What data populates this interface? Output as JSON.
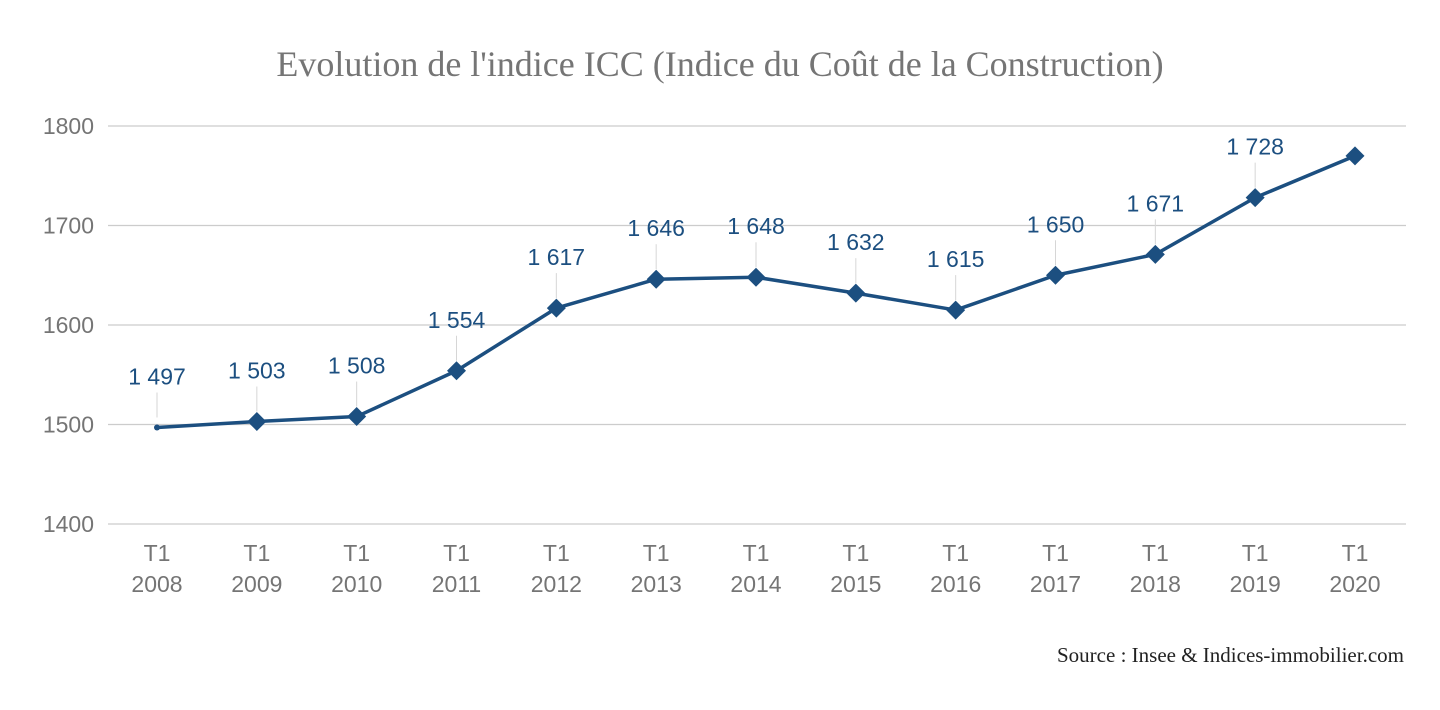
{
  "chart_data": {
    "type": "line",
    "title": "Evolution de l'indice ICC (Indice du Coût de la Construction)",
    "source": "Source : Insee & Indices-immobilier.com",
    "categories": [
      [
        "T1",
        "2008"
      ],
      [
        "T1",
        "2009"
      ],
      [
        "T1",
        "2010"
      ],
      [
        "T1",
        "2011"
      ],
      [
        "T1",
        "2012"
      ],
      [
        "T1",
        "2013"
      ],
      [
        "T1",
        "2014"
      ],
      [
        "T1",
        "2015"
      ],
      [
        "T1",
        "2016"
      ],
      [
        "T1",
        "2017"
      ],
      [
        "T1",
        "2018"
      ],
      [
        "T1",
        "2019"
      ],
      [
        "T1",
        "2020"
      ]
    ],
    "series": [
      {
        "values": [
          1497,
          1503,
          1508,
          1554,
          1617,
          1646,
          1648,
          1632,
          1615,
          1650,
          1671,
          1728,
          1770
        ],
        "labels": [
          "1 497",
          "1 503",
          "1 508",
          "1 554",
          "1 617",
          "1 646",
          "1 648",
          "1 632",
          "1 615",
          "1 650",
          "1 671",
          "1 728",
          ""
        ],
        "color": "#1c4f80",
        "marker": "diamond"
      }
    ],
    "ylim": [
      1400,
      1800
    ],
    "yticks": [
      "1400",
      "1500",
      "1600",
      "1700",
      "1800"
    ],
    "ytick_values": [
      1400,
      1500,
      1600,
      1700,
      1800
    ],
    "grid": true,
    "legend": "none",
    "xlabel": "",
    "ylabel": ""
  }
}
